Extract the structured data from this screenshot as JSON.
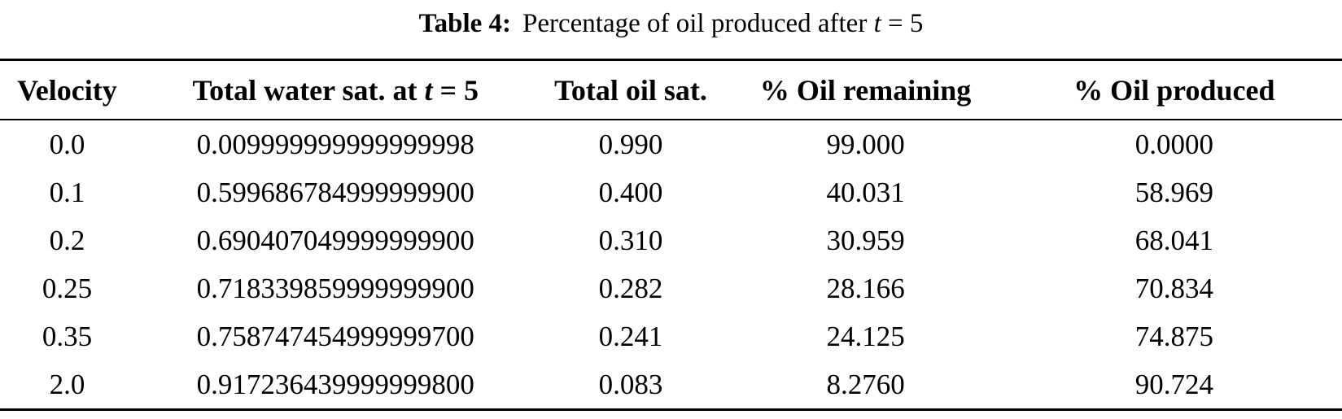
{
  "caption": {
    "label": "Table 4:",
    "text": "Percentage of oil produced after",
    "variable": "t",
    "suffix": "= 5"
  },
  "table": {
    "headers": {
      "velocity": "Velocity",
      "water_sat_prefix": "Total water sat. at",
      "water_sat_variable": "t",
      "water_sat_suffix": "= 5",
      "oil_sat": "Total oil sat.",
      "oil_remaining": "% Oil remaining",
      "oil_produced": "% Oil produced"
    },
    "rows": [
      {
        "velocity": "0.0",
        "water_sat": "0.009999999999999998",
        "oil_sat": "0.990",
        "oil_remaining": "99.000",
        "oil_produced": "0.0000"
      },
      {
        "velocity": "0.1",
        "water_sat": "0.599686784999999900",
        "oil_sat": "0.400",
        "oil_remaining": "40.031",
        "oil_produced": "58.969"
      },
      {
        "velocity": "0.2",
        "water_sat": "0.690407049999999900",
        "oil_sat": "0.310",
        "oil_remaining": "30.959",
        "oil_produced": "68.041"
      },
      {
        "velocity": "0.25",
        "water_sat": "0.718339859999999900",
        "oil_sat": "0.282",
        "oil_remaining": "28.166",
        "oil_produced": "70.834"
      },
      {
        "velocity": "0.35",
        "water_sat": "0.758747454999999700",
        "oil_sat": "0.241",
        "oil_remaining": "24.125",
        "oil_produced": "74.875"
      },
      {
        "velocity": "2.0",
        "water_sat": "0.917236439999999800",
        "oil_sat": "0.083",
        "oil_remaining": "8.2760",
        "oil_produced": "90.724"
      }
    ]
  },
  "colors": {
    "text": "#000000",
    "background": "#ffffff",
    "rule": "#000000"
  }
}
